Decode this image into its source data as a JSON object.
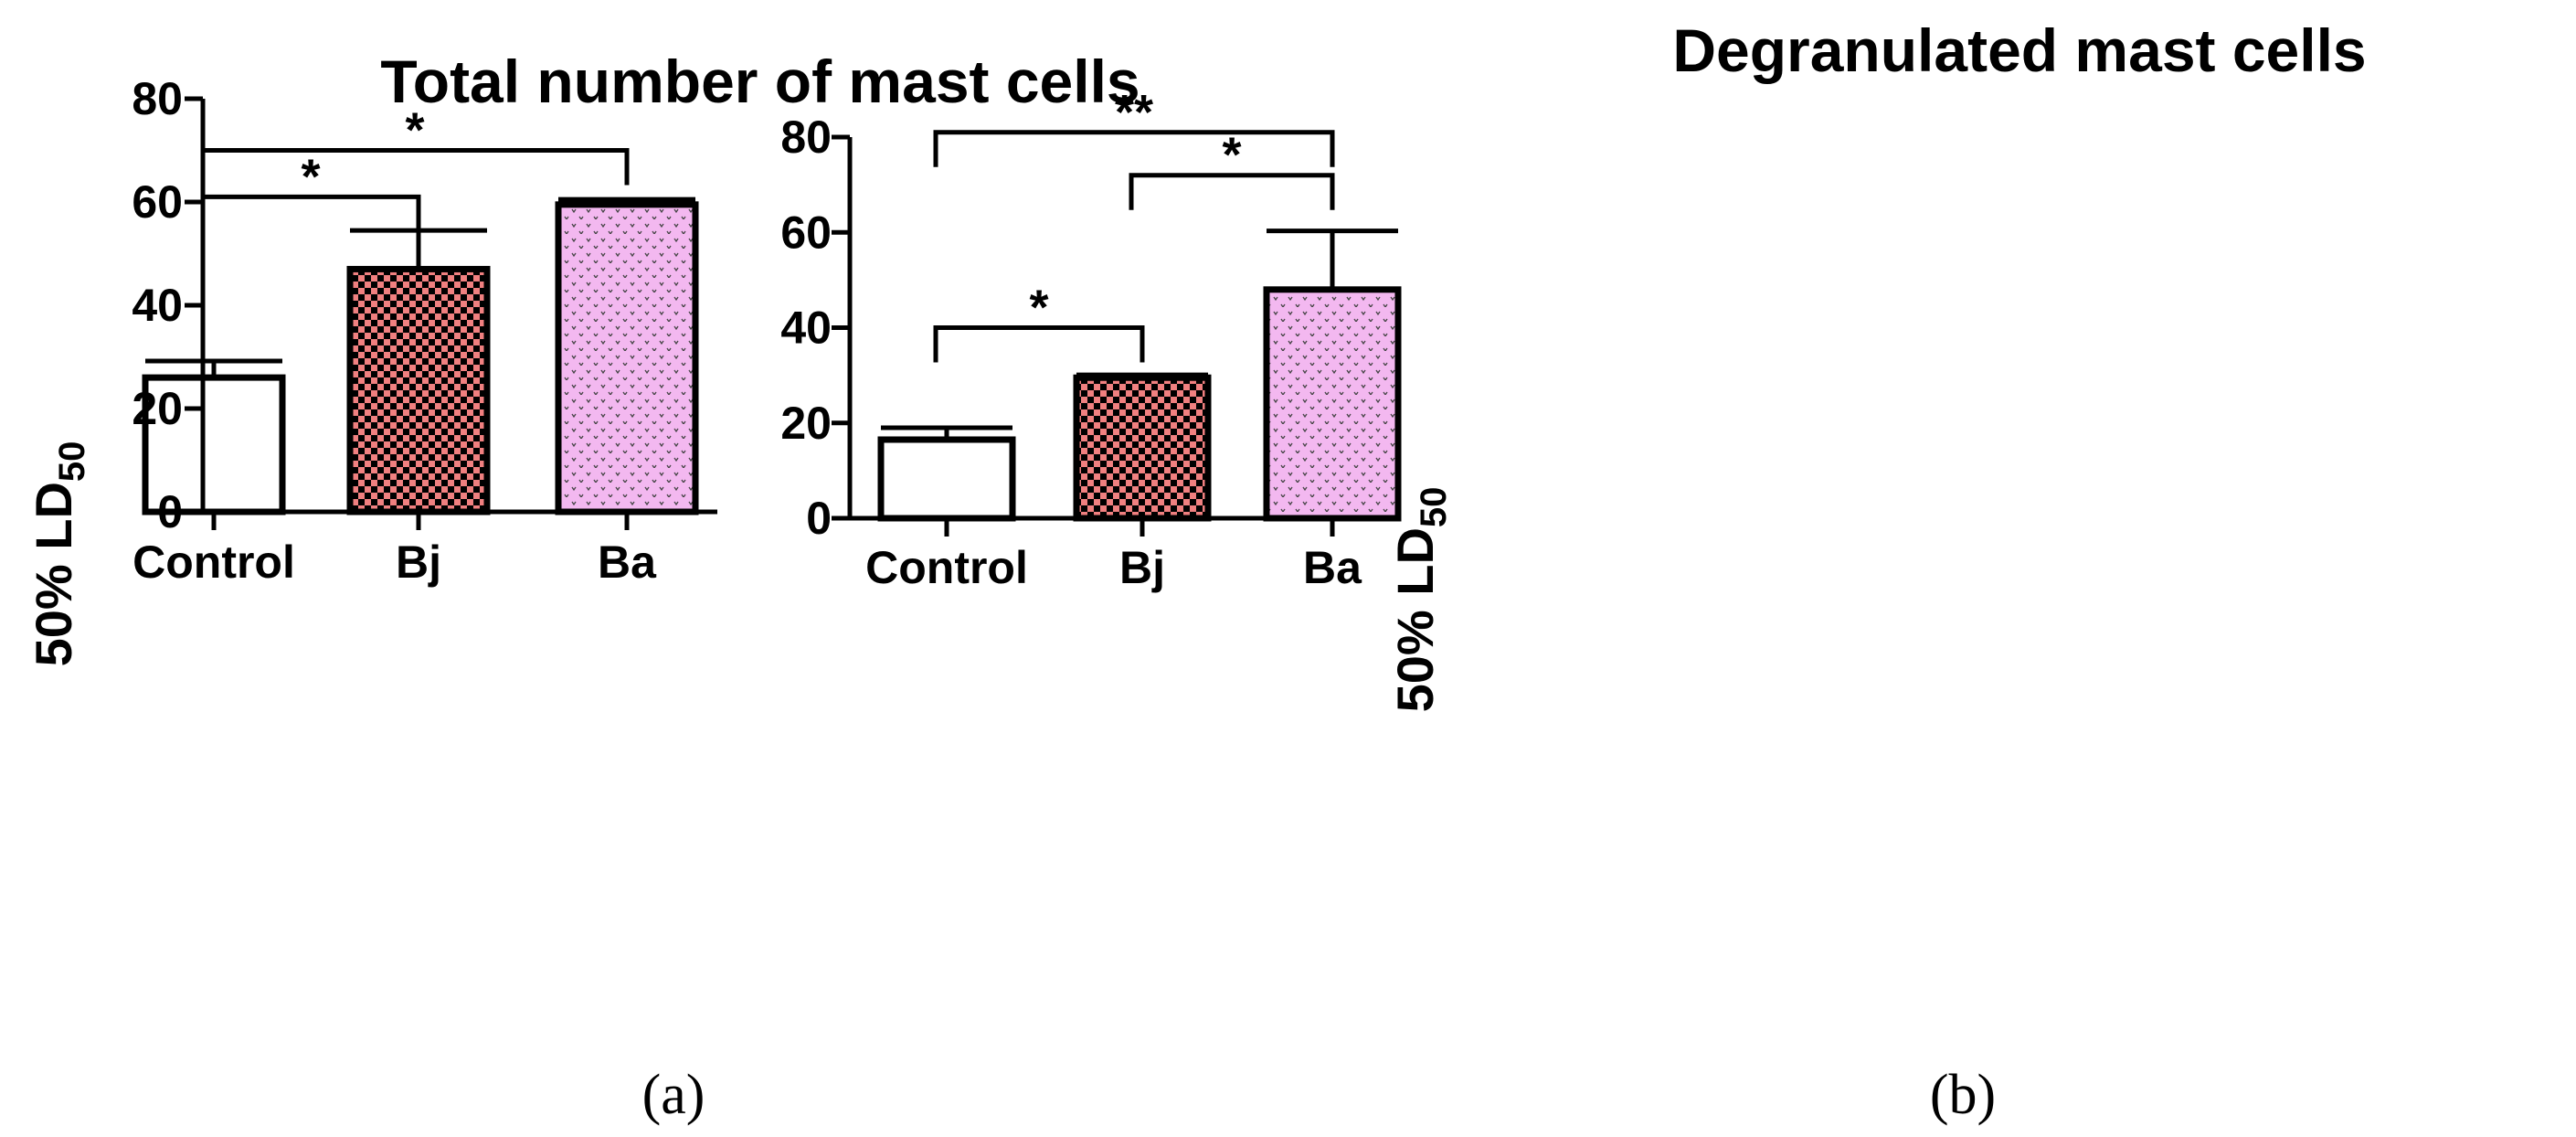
{
  "colors": {
    "control_fill": "#ffffff",
    "bj_fill": "#f08080",
    "bj_pattern": "#000000",
    "ba_fill": "#f3b8f0",
    "ba_pattern": "#444444",
    "stroke": "#000000"
  },
  "chart_data": [
    {
      "type": "bar",
      "panel_label": "(a)",
      "title": "Total number of mast cells",
      "xlabel": "",
      "ylabel": "50% LD",
      "ylabel_sub": "50",
      "ylim": [
        0,
        80
      ],
      "yticks": [
        0,
        20,
        40,
        60,
        80
      ],
      "grid": false,
      "categories": [
        "Control",
        "Bj",
        "Ba"
      ],
      "values": [
        26,
        47,
        59.5
      ],
      "errors": [
        3.2,
        7.5,
        1.0
      ],
      "fills": [
        "control",
        "bj",
        "ba"
      ],
      "significance": [
        {
          "from": 0,
          "to": 1,
          "label": "*",
          "level": 61
        },
        {
          "from": 0,
          "to": 2,
          "label": "*",
          "level": 70
        }
      ]
    },
    {
      "type": "bar",
      "panel_label": "(b)",
      "title": "Degranulated mast cells",
      "xlabel": "",
      "ylabel": "50% LD",
      "ylabel_sub": "50",
      "ylim": [
        0,
        80
      ],
      "yticks": [
        0,
        20,
        40,
        60,
        80
      ],
      "grid": false,
      "categories": [
        "Control",
        "Bj",
        "Ba"
      ],
      "values": [
        16.5,
        29.5,
        48
      ],
      "errors": [
        2.5,
        0.6,
        12.3
      ],
      "fills": [
        "control",
        "bj",
        "ba"
      ],
      "significance": [
        {
          "from": 0,
          "to": 1,
          "label": "*",
          "level": 40
        },
        {
          "from": 1,
          "to": 2,
          "label": "*",
          "level": 72
        },
        {
          "from": 0,
          "to": 2,
          "label": "**",
          "level": 81
        }
      ]
    }
  ]
}
